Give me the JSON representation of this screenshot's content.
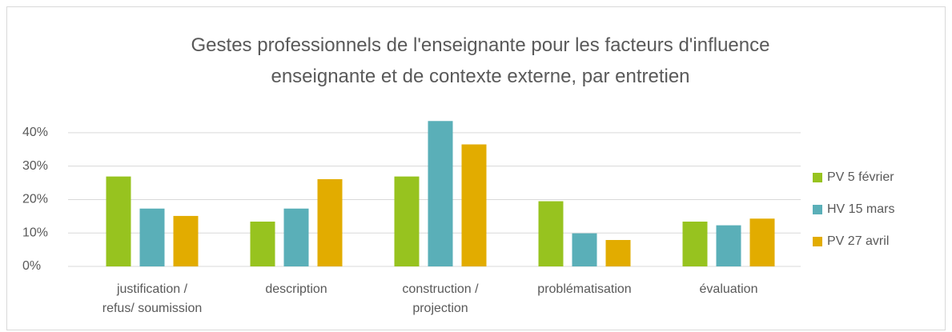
{
  "chart_data": {
    "type": "bar",
    "title": "Gestes professionnels de l'enseignante pour les facteurs d'influence\nenseignante et de contexte externe, par entretien",
    "categories": [
      "justification /\nrefus/ soumission",
      "description",
      "construction /\nprojection",
      "problématisation",
      "évaluation"
    ],
    "series": [
      {
        "name": "PV 5 février",
        "color": "#97c31f",
        "values": [
          26.9,
          13.4,
          26.9,
          19.5,
          13.4
        ]
      },
      {
        "name": "HV 15 mars",
        "color": "#5aafb8",
        "values": [
          17.3,
          17.3,
          43.5,
          9.9,
          12.3
        ]
      },
      {
        "name": "PV 27 avril",
        "color": "#e2ac00",
        "values": [
          15.1,
          26.1,
          36.5,
          7.9,
          14.3
        ]
      }
    ],
    "ylim": [
      0,
      45
    ],
    "yticks": [
      {
        "value": 0,
        "label": "0%"
      },
      {
        "value": 10,
        "label": "10%"
      },
      {
        "value": 20,
        "label": "20%"
      },
      {
        "value": 30,
        "label": "30%"
      },
      {
        "value": 40,
        "label": "40%"
      }
    ],
    "grid": true,
    "legend": "right"
  }
}
